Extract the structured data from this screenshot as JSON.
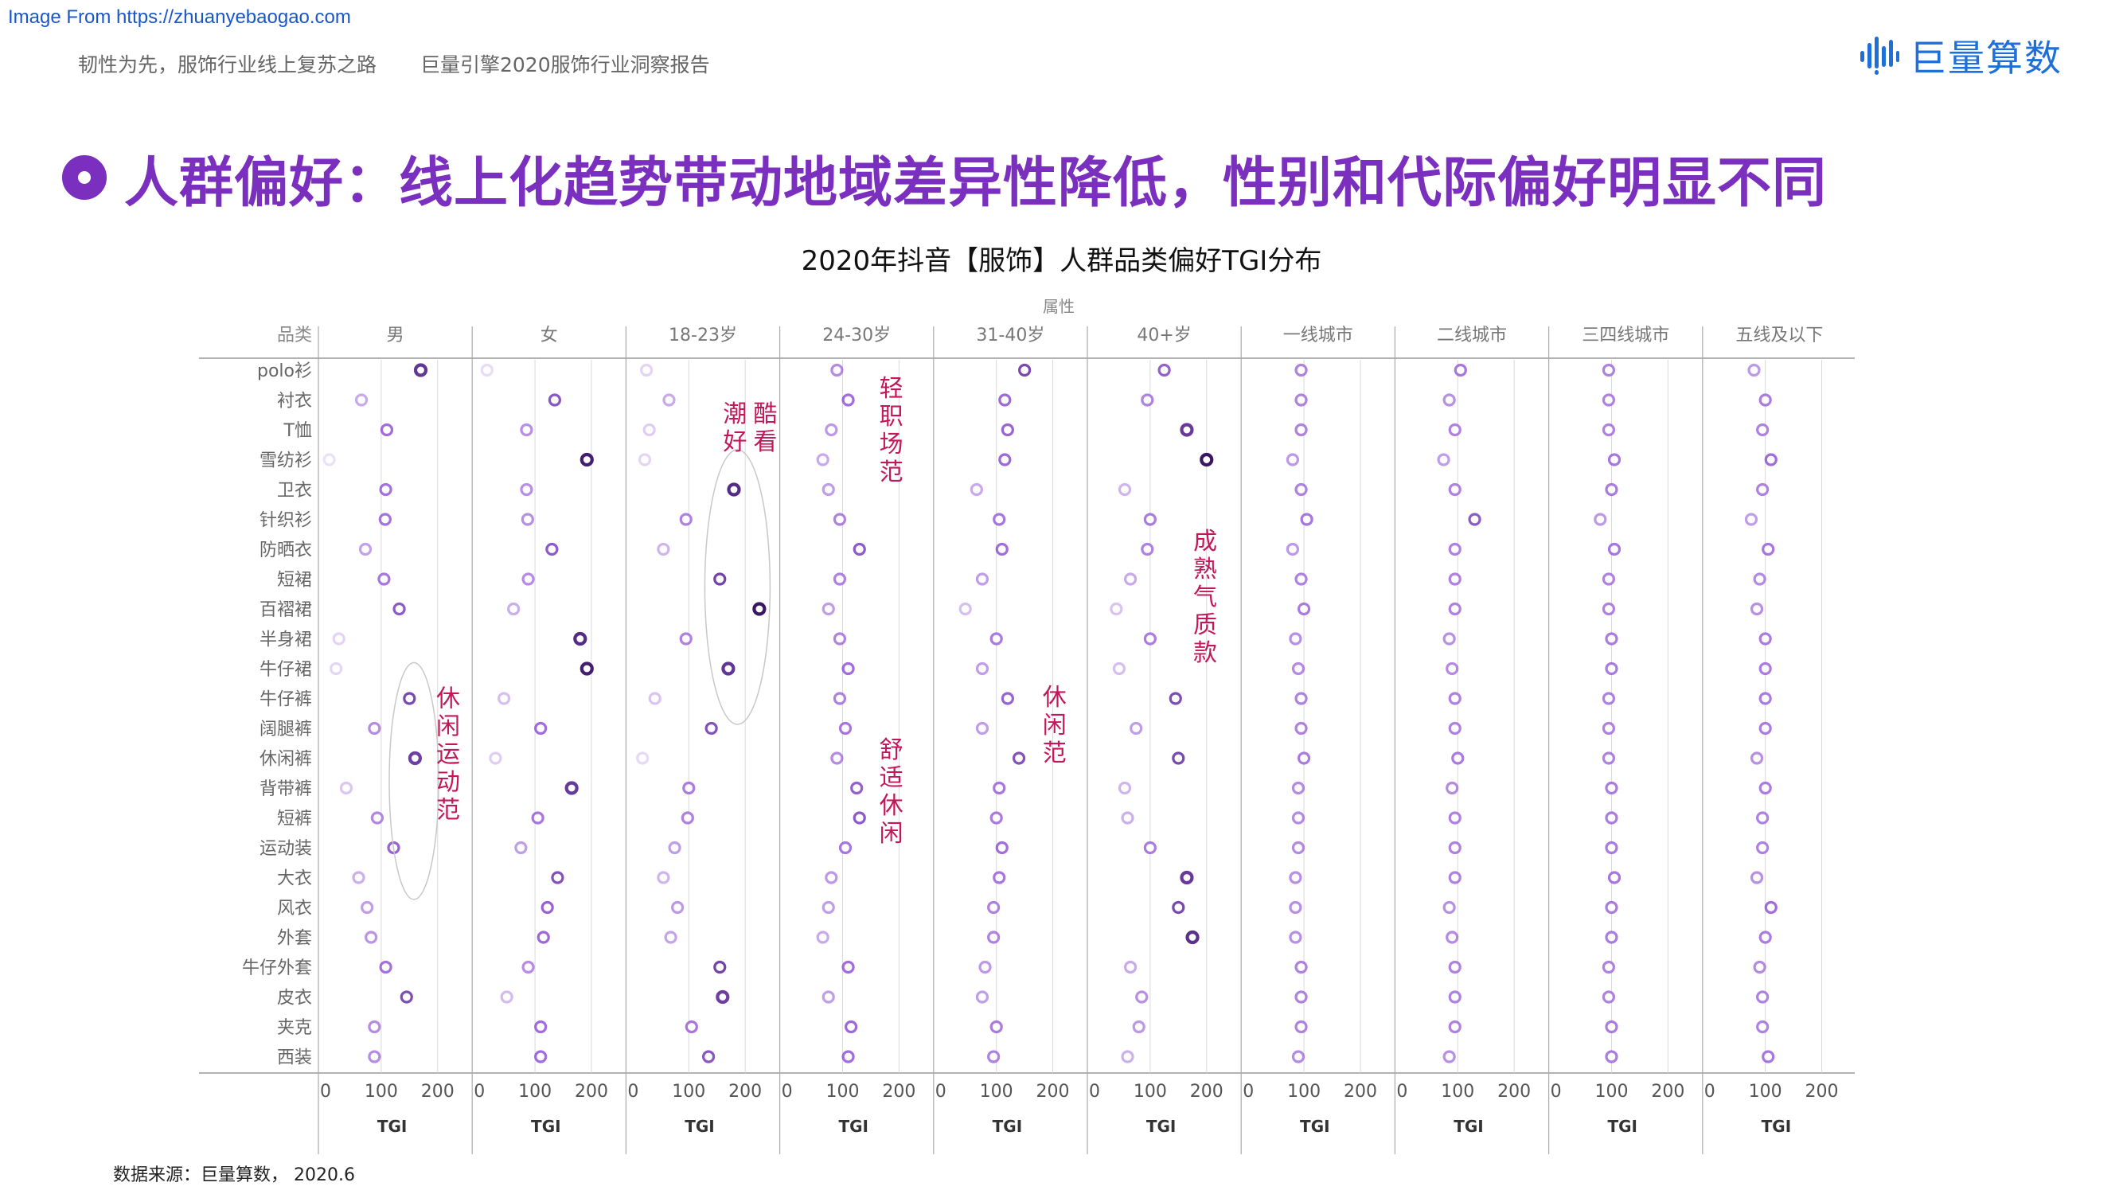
{
  "source_url": "Image From https://zhuanyebaogao.com",
  "header": {
    "crumb_left": "韧性为先，服饰行业线上复苏之路",
    "crumb_right": "巨量引擎2020服饰行业洞察报告",
    "logo_text": "巨量算数",
    "logo_color": "#1e6fd9",
    "logo_icon": "bar-signal-icon"
  },
  "headline": {
    "text": "人群偏好：线上化趋势带动地域差异性降低，性别和代际偏好明显不同",
    "color": "#7b2fbf"
  },
  "chart_title": "2020年抖音【服饰】人群品类偏好TGI分布",
  "footnote": "数据来源：巨量算数， 2020.6",
  "colors": {
    "accent": "#7b2fbf",
    "annotation": "#c2185b",
    "grid": "#d9d9d9",
    "ellipse": "#c8c8c8"
  },
  "chart_data": {
    "type": "scatter",
    "title": "2020年抖音【服饰】人群品类偏好TGI分布",
    "facet_label": "属性",
    "row_header": "品类",
    "xlabel": "TGI",
    "xlim": [
      0,
      250
    ],
    "x_ticks": [
      "0",
      "100",
      "200"
    ],
    "categories": [
      "polo衫",
      "衬衣",
      "T恤",
      "雪纺衫",
      "卫衣",
      "针织衫",
      "防晒衣",
      "短裙",
      "百褶裙",
      "半身裙",
      "牛仔裙",
      "牛仔裤",
      "阔腿裤",
      "休闲裤",
      "背带裤",
      "短裤",
      "运动装",
      "大衣",
      "风衣",
      "外套",
      "牛仔外套",
      "皮衣",
      "夹克",
      "西装"
    ],
    "series": [
      {
        "name": "男",
        "values": [
          170,
          65,
          110,
          8,
          108,
          107,
          72,
          105,
          132,
          25,
          20,
          150,
          88,
          160,
          38,
          93,
          122,
          60,
          75,
          82,
          108,
          145,
          88,
          88
        ]
      },
      {
        "name": "女",
        "values": [
          15,
          135,
          85,
          192,
          85,
          87,
          130,
          88,
          62,
          180,
          192,
          45,
          110,
          30,
          165,
          105,
          75,
          140,
          122,
          115,
          88,
          50,
          110,
          110
        ]
      },
      {
        "name": "18-23岁",
        "values": [
          25,
          65,
          30,
          22,
          180,
          95,
          55,
          155,
          225,
          95,
          170,
          40,
          140,
          18,
          100,
          98,
          75,
          55,
          80,
          68,
          155,
          160,
          105,
          135
        ]
      },
      {
        "name": "24-30岁",
        "values": [
          90,
          110,
          80,
          65,
          75,
          95,
          130,
          95,
          75,
          95,
          110,
          95,
          105,
          90,
          125,
          130,
          105,
          80,
          75,
          65,
          110,
          75,
          115,
          110
        ]
      },
      {
        "name": "31-40岁",
        "values": [
          150,
          115,
          120,
          115,
          65,
          105,
          110,
          75,
          45,
          100,
          75,
          120,
          75,
          140,
          105,
          100,
          110,
          105,
          95,
          95,
          80,
          75,
          100,
          95
        ]
      },
      {
        "name": "40+岁",
        "values": [
          125,
          95,
          165,
          200,
          55,
          100,
          95,
          65,
          40,
          100,
          45,
          145,
          75,
          150,
          55,
          60,
          100,
          165,
          150,
          175,
          65,
          85,
          80,
          60
        ]
      },
      {
        "name": "一线城市",
        "values": [
          95,
          95,
          95,
          80,
          95,
          105,
          80,
          95,
          100,
          85,
          90,
          95,
          95,
          100,
          90,
          90,
          90,
          85,
          85,
          85,
          95,
          95,
          95,
          90
        ]
      },
      {
        "name": "二线城市",
        "values": [
          105,
          85,
          95,
          75,
          95,
          130,
          95,
          95,
          95,
          85,
          90,
          95,
          95,
          100,
          90,
          95,
          95,
          95,
          85,
          90,
          95,
          95,
          95,
          85
        ]
      },
      {
        "name": "三四线城市",
        "values": [
          95,
          95,
          95,
          105,
          100,
          80,
          105,
          95,
          95,
          100,
          100,
          95,
          95,
          95,
          100,
          100,
          100,
          105,
          100,
          100,
          95,
          95,
          100,
          100
        ]
      },
      {
        "name": "五线及以下",
        "values": [
          80,
          100,
          95,
          110,
          95,
          75,
          105,
          90,
          85,
          100,
          100,
          100,
          100,
          85,
          100,
          95,
          95,
          85,
          110,
          100,
          90,
          95,
          95,
          105
        ]
      }
    ],
    "annotations": [
      {
        "facet": "男",
        "text": "休闲运动范",
        "category_from": "牛仔裤",
        "category_to": "运动装"
      },
      {
        "facet": "18-23岁",
        "text": "潮酷好看",
        "category_from": "卫衣",
        "category_to": "牛仔裙"
      },
      {
        "facet": "24-30岁",
        "text": "轻职场范",
        "category_from": "polo衫",
        "category_to": "雪纺衫"
      },
      {
        "facet": "24-30岁",
        "text": "舒适休闲",
        "category_from": "休闲裤",
        "category_to": "短裤"
      },
      {
        "facet": "31-40岁",
        "text": "休闲范",
        "category_from": "牛仔裤",
        "category_to": "休闲裤"
      },
      {
        "facet": "40+岁",
        "text": "成熟气质款",
        "category_from": "防晒衣",
        "category_to": "半身裙"
      }
    ],
    "grid": true,
    "legend": "none"
  }
}
